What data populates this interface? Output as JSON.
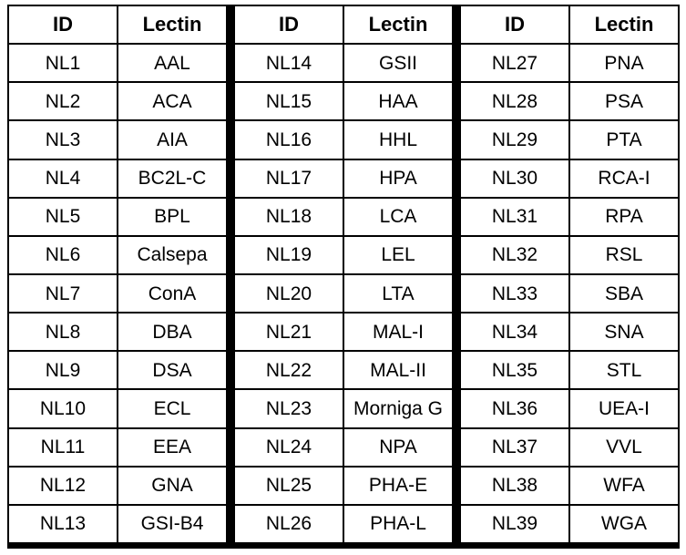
{
  "table": {
    "column_headers": [
      "ID",
      "Lectin"
    ],
    "groups": [
      {
        "rows": [
          [
            "NL1",
            "AAL"
          ],
          [
            "NL2",
            "ACA"
          ],
          [
            "NL3",
            "AIA"
          ],
          [
            "NL4",
            "BC2L-C"
          ],
          [
            "NL5",
            "BPL"
          ],
          [
            "NL6",
            "Calsepa"
          ],
          [
            "NL7",
            "ConA"
          ],
          [
            "NL8",
            "DBA"
          ],
          [
            "NL9",
            "DSA"
          ],
          [
            "NL10",
            "ECL"
          ],
          [
            "NL11",
            "EEA"
          ],
          [
            "NL12",
            "GNA"
          ],
          [
            "NL13",
            "GSI-B4"
          ]
        ]
      },
      {
        "rows": [
          [
            "NL14",
            "GSII"
          ],
          [
            "NL15",
            "HAA"
          ],
          [
            "NL16",
            "HHL"
          ],
          [
            "NL17",
            "HPA"
          ],
          [
            "NL18",
            "LCA"
          ],
          [
            "NL19",
            "LEL"
          ],
          [
            "NL20",
            "LTA"
          ],
          [
            "NL21",
            "MAL-I"
          ],
          [
            "NL22",
            "MAL-II"
          ],
          [
            "NL23",
            "Morniga G"
          ],
          [
            "NL24",
            "NPA"
          ],
          [
            "NL25",
            "PHA-E"
          ],
          [
            "NL26",
            "PHA-L"
          ]
        ]
      },
      {
        "rows": [
          [
            "NL27",
            "PNA"
          ],
          [
            "NL28",
            "PSA"
          ],
          [
            "NL29",
            "PTA"
          ],
          [
            "NL30",
            "RCA-I"
          ],
          [
            "NL31",
            "RPA"
          ],
          [
            "NL32",
            "RSL"
          ],
          [
            "NL33",
            "SBA"
          ],
          [
            "NL34",
            "SNA"
          ],
          [
            "NL35",
            "STL"
          ],
          [
            "NL36",
            "UEA-I"
          ],
          [
            "NL37",
            "VVL"
          ],
          [
            "NL38",
            "WFA"
          ],
          [
            "NL39",
            "WGA"
          ]
        ]
      }
    ],
    "colors": {
      "border": "#000000",
      "cell_background": "#ffffff",
      "text": "#000000"
    }
  }
}
